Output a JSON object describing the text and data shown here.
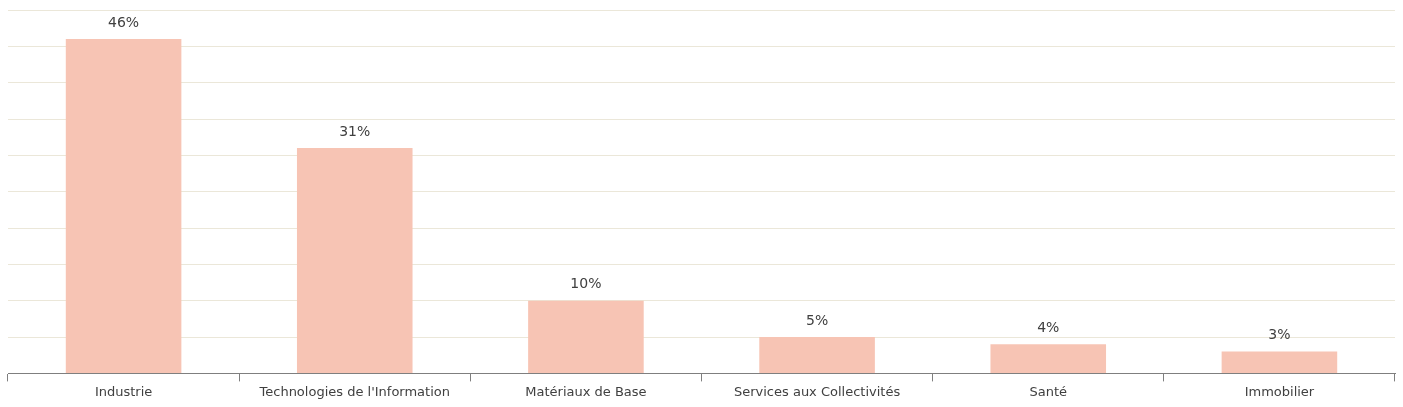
{
  "chart_data": {
    "type": "bar",
    "categories": [
      "Industrie",
      "Technologies de l'Information",
      "Matériaux de Base",
      "Services aux Collectivités",
      "Santé",
      "Immobilier"
    ],
    "values": [
      46,
      31,
      10,
      5,
      4,
      3
    ],
    "value_labels": [
      "46%",
      "31%",
      "10%",
      "5%",
      "4%",
      "3%"
    ],
    "color": "#f7c4b4",
    "ylim": [
      0,
      50
    ],
    "yticks": [
      {
        "value": 0,
        "label": null
      },
      {
        "value": 5,
        "label": null
      },
      {
        "value": 10,
        "label": null
      },
      {
        "value": 15,
        "label": null
      },
      {
        "value": 20,
        "label": null
      },
      {
        "value": 25,
        "label": null
      },
      {
        "value": 30,
        "label": null
      },
      {
        "value": 35,
        "label": null
      },
      {
        "value": 40,
        "label": null
      },
      {
        "value": 45,
        "label": null
      },
      {
        "value": 50,
        "label": null
      }
    ],
    "grid": "y",
    "tick_labels": "x",
    "legend": false
  }
}
